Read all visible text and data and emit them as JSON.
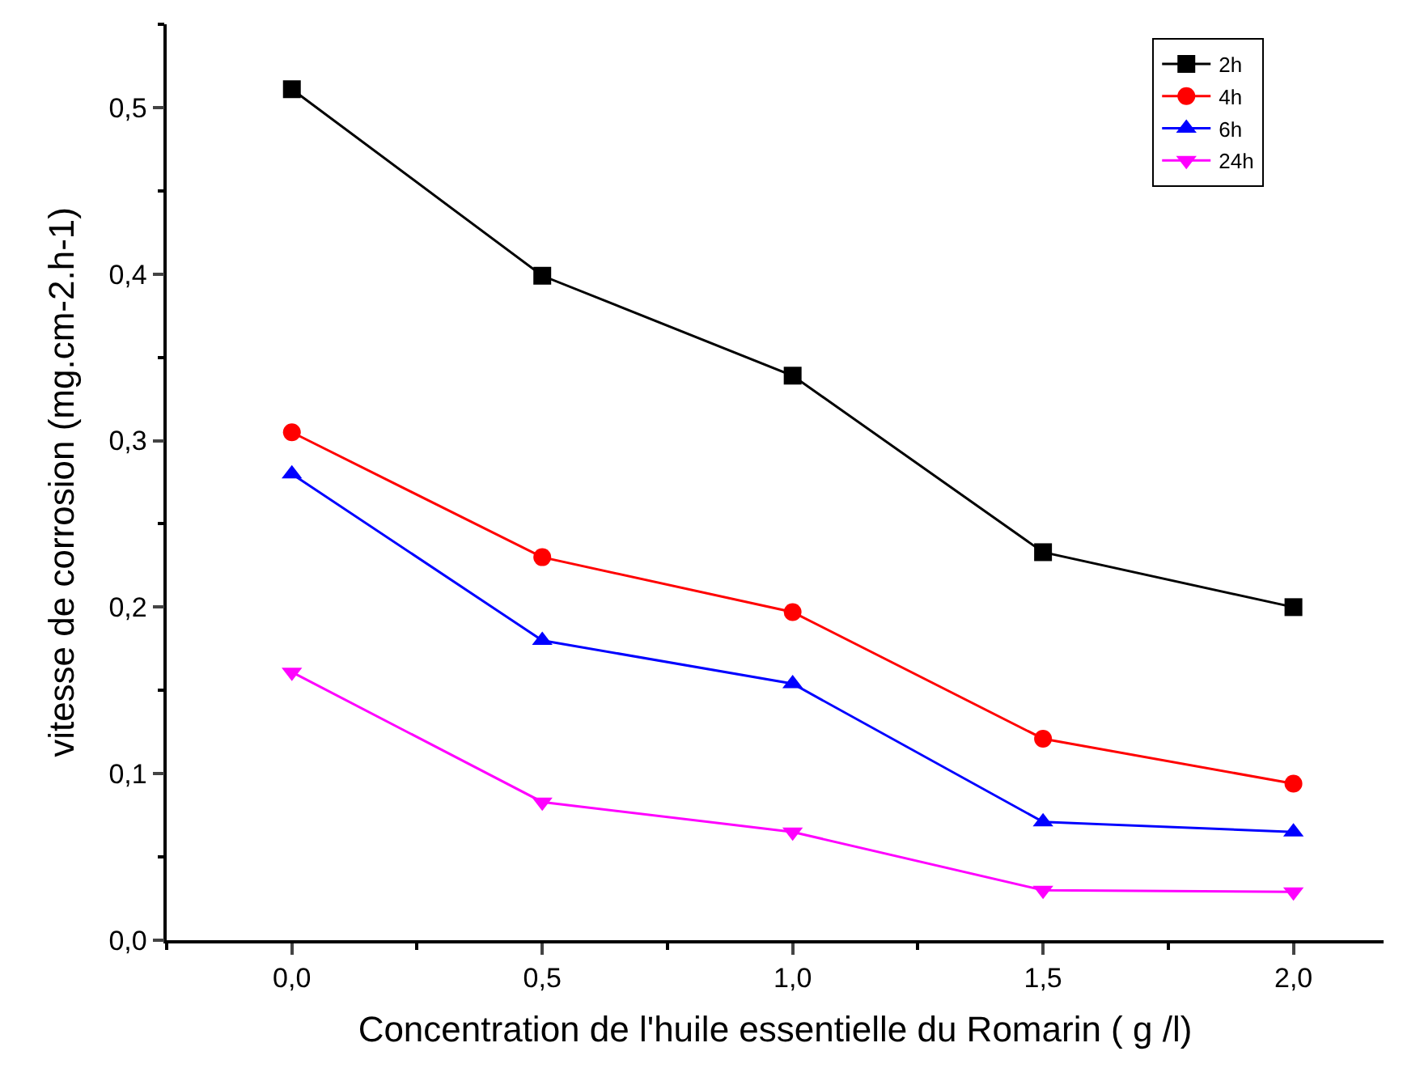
{
  "chart_data": {
    "type": "line",
    "xlabel": "Concentration de l'huile essentielle du Romarin ( g /l)",
    "ylabel": "vitesse de corrosion (mg.cm-2.h-1)",
    "x": [
      0,
      0.5,
      1,
      1.5,
      2
    ],
    "series": [
      {
        "name": "2h",
        "color": "#000000",
        "marker": "square",
        "values": [
          0.511,
          0.399,
          0.339,
          0.233,
          0.2
        ]
      },
      {
        "name": "4h",
        "color": "#ff0000",
        "marker": "circle",
        "values": [
          0.305,
          0.23,
          0.197,
          0.121,
          0.094
        ]
      },
      {
        "name": "6h",
        "color": "#0000ff",
        "marker": "triangle",
        "values": [
          0.28,
          0.18,
          0.154,
          0.071,
          0.065
        ]
      },
      {
        "name": "24h",
        "color": "#ff00ff",
        "marker": "triangle-down",
        "values": [
          0.161,
          0.083,
          0.065,
          0.03,
          0.029
        ]
      }
    ],
    "xlim": [
      -0.25,
      2.18
    ],
    "xticks": [
      {
        "value": 0,
        "label": "0,0"
      },
      {
        "value": 0.5,
        "label": "0,5"
      },
      {
        "value": 1,
        "label": "1,0"
      },
      {
        "value": 1.5,
        "label": "1,5"
      },
      {
        "value": 2,
        "label": "2,0"
      }
    ],
    "ylim": [
      0,
      0.55
    ],
    "yticks": [
      {
        "value": 0,
        "label": "0,0"
      },
      {
        "value": 0.1,
        "label": "0,1"
      },
      {
        "value": 0.2,
        "label": "0,2"
      },
      {
        "value": 0.3,
        "label": "0,3"
      },
      {
        "value": 0.4,
        "label": "0,4"
      },
      {
        "value": 0.5,
        "label": "0,5"
      }
    ],
    "legend": "top right",
    "line_style": "solid"
  }
}
